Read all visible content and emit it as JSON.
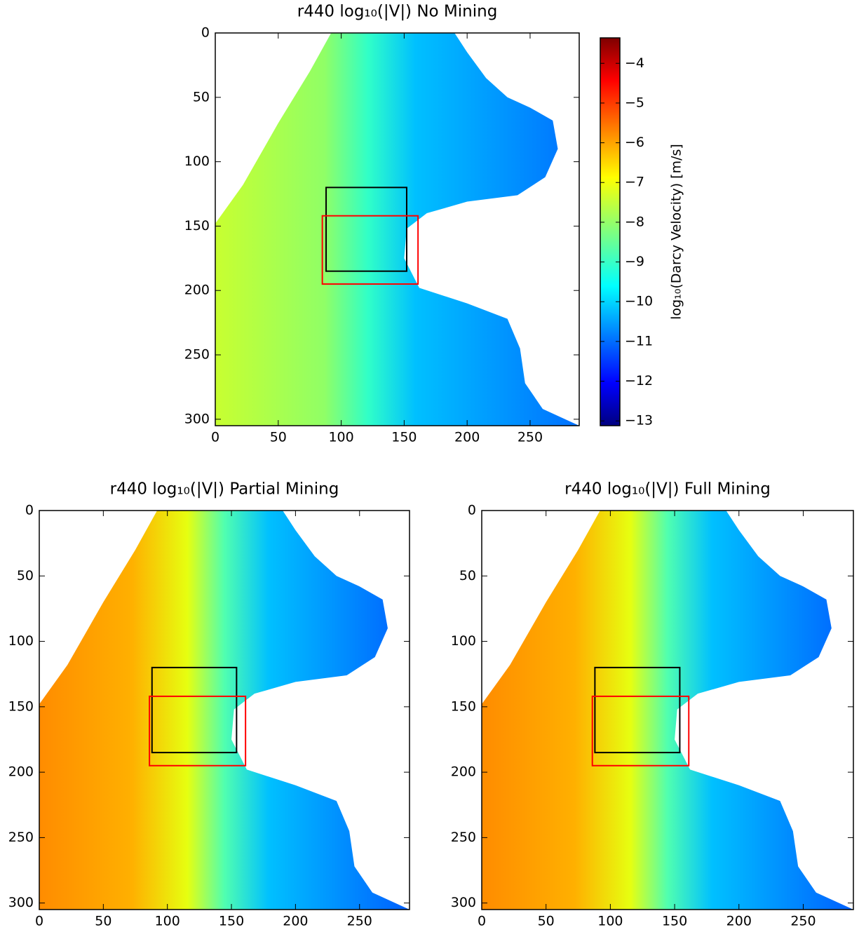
{
  "chart_data": [
    {
      "type": "heatmap",
      "title": "r440 log₁₀(|V|) No Mining",
      "xlim": [
        0,
        289
      ],
      "ylim": [
        305,
        0
      ],
      "xticks": [
        0,
        50,
        100,
        150,
        200,
        250
      ],
      "yticks": [
        0,
        50,
        100,
        150,
        200,
        250,
        300
      ],
      "boxes": [
        {
          "color": "#000000",
          "x": [
            88,
            152
          ],
          "y": [
            120,
            185
          ]
        },
        {
          "color": "#ff0000",
          "x": [
            85,
            161
          ],
          "y": [
            142,
            195
          ]
        }
      ],
      "colorbar": {
        "label": "log₁₀(Darcy Velocity) [m/s]",
        "lim": [
          -13.12,
          -3.36
        ],
        "ticks": [
          {
            "value": -4,
            "label": "−4"
          },
          {
            "value": -5,
            "label": "−5"
          },
          {
            "value": -6,
            "label": "−6"
          },
          {
            "value": -7,
            "label": "−7"
          },
          {
            "value": -8,
            "label": "−8"
          },
          {
            "value": -9,
            "label": "−9"
          },
          {
            "value": -10,
            "label": "−10"
          },
          {
            "value": -11,
            "label": "−11"
          },
          {
            "value": -12,
            "label": "−12"
          },
          {
            "value": -13,
            "label": "−13"
          }
        ]
      }
    },
    {
      "type": "heatmap",
      "title": "r440 log₁₀(|V|) Partial Mining",
      "xlim": [
        0,
        289
      ],
      "ylim": [
        305,
        0
      ],
      "xticks": [
        0,
        50,
        100,
        150,
        200,
        250
      ],
      "yticks": [
        0,
        50,
        100,
        150,
        200,
        250,
        300
      ],
      "boxes": [
        {
          "color": "#000000",
          "x": [
            88,
            154
          ],
          "y": [
            120,
            185
          ]
        },
        {
          "color": "#ff0000",
          "x": [
            86,
            161
          ],
          "y": [
            142,
            195
          ]
        }
      ]
    },
    {
      "type": "heatmap",
      "title": "r440 log₁₀(|V|) Full Mining",
      "xlim": [
        0,
        289
      ],
      "ylim": [
        305,
        0
      ],
      "xticks": [
        0,
        50,
        100,
        150,
        200,
        250
      ],
      "yticks": [
        0,
        50,
        100,
        150,
        200,
        250,
        300
      ],
      "boxes": [
        {
          "color": "#000000",
          "x": [
            88,
            154
          ],
          "y": [
            120,
            185
          ]
        },
        {
          "color": "#ff0000",
          "x": [
            86,
            161
          ],
          "y": [
            142,
            195
          ]
        }
      ]
    }
  ]
}
